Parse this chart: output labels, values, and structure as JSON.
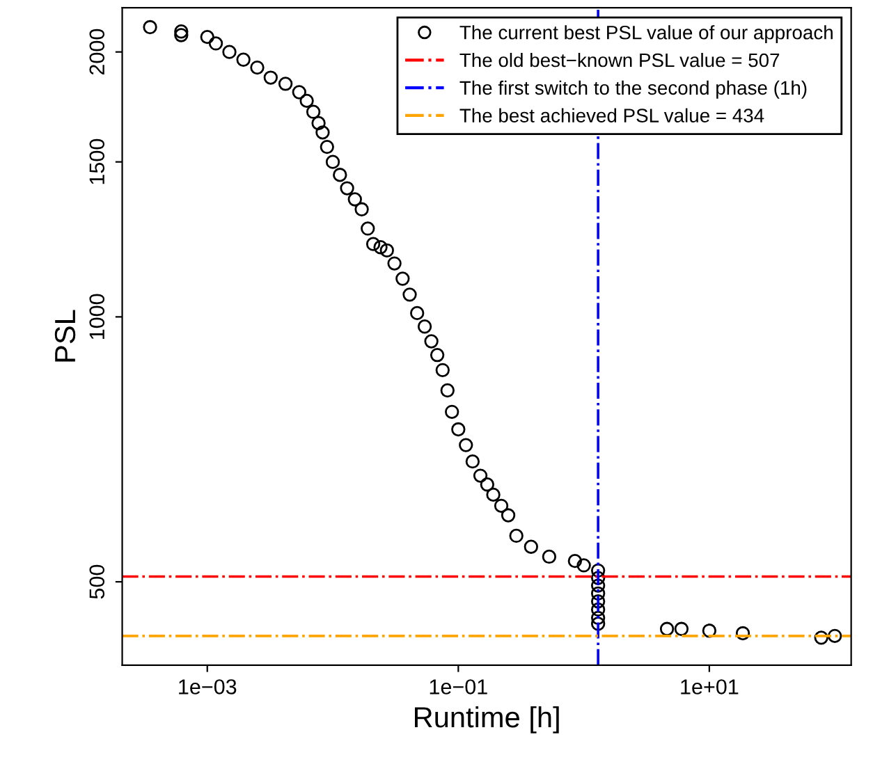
{
  "chart_data": {
    "type": "scatter",
    "xlabel": "Runtime [h]",
    "ylabel": "PSL",
    "log": "xy",
    "marker": "circle",
    "legend": "top right",
    "grid": false,
    "xlim": [
      0.00021,
      135
    ],
    "ylim": [
      402,
      2245
    ],
    "xticks": [
      {
        "value": 0.001,
        "label": "1e−03"
      },
      {
        "value": 0.1,
        "label": "1e−01"
      },
      {
        "value": 10,
        "label": "1e+01"
      }
    ],
    "yticks": [
      500,
      1000,
      1500,
      2000
    ],
    "series": [
      {
        "name": "The current best PSL value of our approach",
        "color": "#000000",
        "x": [
          0.00035,
          0.00062,
          0.00062,
          0.001,
          0.00117,
          0.0015,
          0.00194,
          0.0025,
          0.0032,
          0.0042,
          0.0054,
          0.0062,
          0.007,
          0.0077,
          0.0083,
          0.009,
          0.01,
          0.0114,
          0.013,
          0.015,
          0.017,
          0.019,
          0.021,
          0.024,
          0.027,
          0.031,
          0.036,
          0.041,
          0.047,
          0.054,
          0.061,
          0.068,
          0.075,
          0.082,
          0.089,
          0.1,
          0.115,
          0.13,
          0.15,
          0.17,
          0.19,
          0.22,
          0.25,
          0.29,
          0.38,
          0.53,
          0.85,
          1.0,
          1.3,
          1.3,
          1.3,
          1.3,
          1.3,
          1.3,
          1.3,
          1.3,
          4.6,
          6,
          10,
          18.5,
          78,
          100
        ],
        "values": [
          2134,
          2110,
          2090,
          2080,
          2045,
          2000,
          1960,
          1920,
          1870,
          1840,
          1800,
          1760,
          1710,
          1660,
          1620,
          1560,
          1500,
          1450,
          1400,
          1360,
          1325,
          1260,
          1210,
          1200,
          1190,
          1150,
          1105,
          1060,
          1010,
          975,
          938,
          905,
          870,
          825,
          780,
          745,
          715,
          685,
          660,
          645,
          628,
          610,
          595,
          564,
          548,
          534,
          528,
          522,
          515,
          505,
          495,
          485,
          475,
          465,
          455,
          448,
          442,
          442,
          440,
          437,
          432,
          434
        ]
      }
    ],
    "ref_lines": [
      {
        "axis": "y",
        "value": 507,
        "label": "The old best−known PSL value = 507",
        "color": "#ff0000",
        "line_style": "dashdot"
      },
      {
        "axis": "x",
        "value": 1.3,
        "label": "The first switch to the second phase (1h)",
        "color": "#0000ff",
        "line_style": "dashdot"
      },
      {
        "axis": "y",
        "value": 434,
        "label": "The best achieved PSL value = 434",
        "color": "#ffa500",
        "line_style": "dashdot"
      }
    ]
  }
}
